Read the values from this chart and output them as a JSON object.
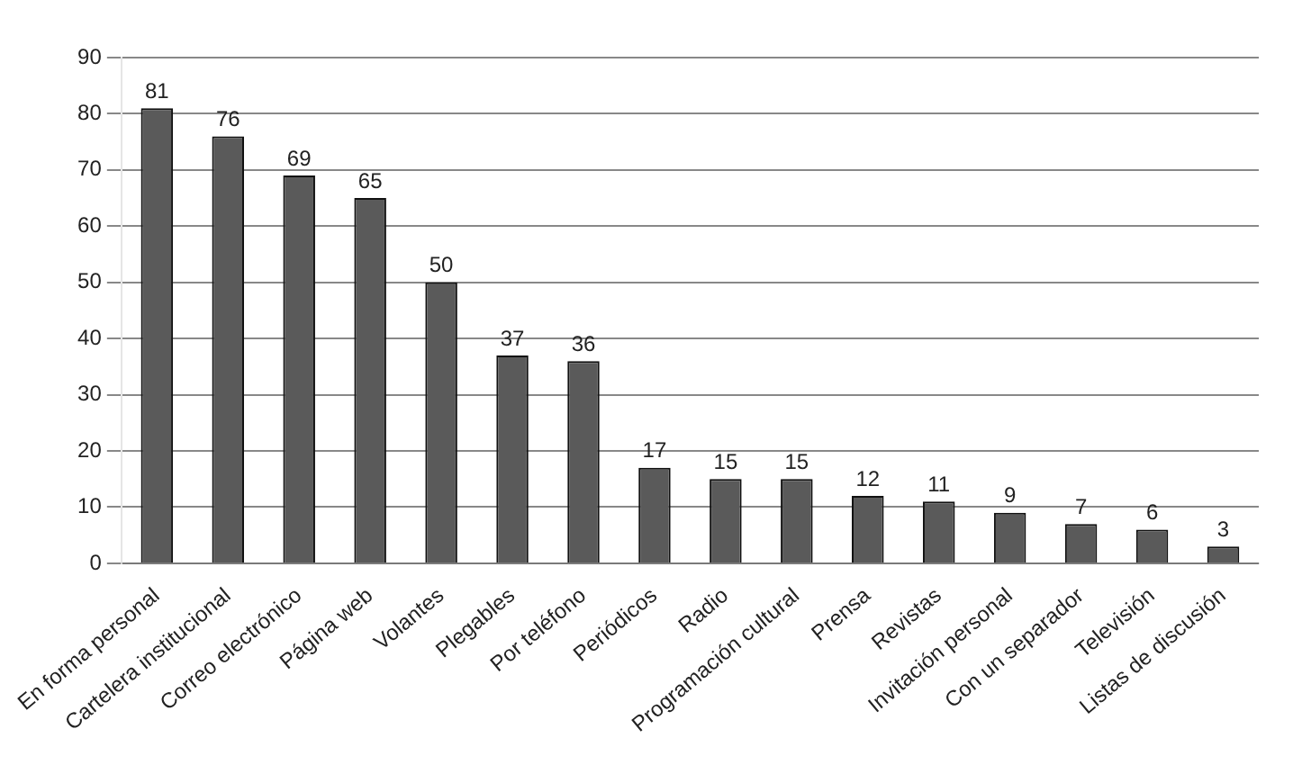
{
  "chart_data": {
    "type": "bar",
    "categories": [
      "En forma personal",
      "Cartelera institucional",
      "Correo electrónico",
      "Página web",
      "Volantes",
      "Plegables",
      "Por teléfono",
      "Periódicos",
      "Radio",
      "Programación cultural",
      "Prensa",
      "Revistas",
      "Invitación personal",
      "Con un separador",
      "Televisión",
      "Listas de discusión"
    ],
    "values": [
      81,
      76,
      69,
      65,
      50,
      37,
      36,
      17,
      15,
      15,
      12,
      11,
      9,
      7,
      6,
      3
    ],
    "color": "#5a5a5a",
    "ylim": [
      0,
      90
    ],
    "yticks": [
      0,
      10,
      20,
      30,
      40,
      50,
      60,
      70,
      80,
      90
    ],
    "grid": "y",
    "data_labels": true,
    "legend": false
  }
}
